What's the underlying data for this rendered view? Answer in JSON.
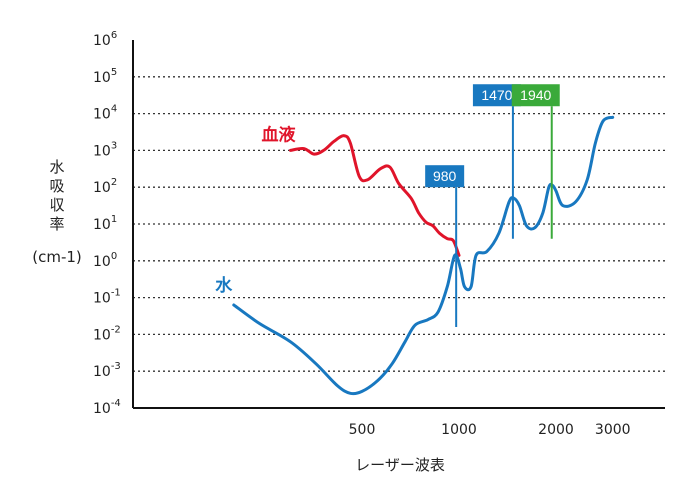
{
  "chart_data": {
    "type": "line",
    "xlabel": "レーザー波表",
    "ylabel_chars": [
      "水",
      "吸",
      "収",
      "率"
    ],
    "ylabel_unit": "(cm-1)",
    "y_scale": "log",
    "y_ticks": [
      {
        "base": "10",
        "exp": "6"
      },
      {
        "base": "10",
        "exp": "5"
      },
      {
        "base": "10",
        "exp": "4"
      },
      {
        "base": "10",
        "exp": "3"
      },
      {
        "base": "10",
        "exp": "2"
      },
      {
        "base": "10",
        "exp": "1"
      },
      {
        "base": "10",
        "exp": "0"
      },
      {
        "base": "10",
        "exp": "-1"
      },
      {
        "base": "10",
        "exp": "-2"
      },
      {
        "base": "10",
        "exp": "-3"
      },
      {
        "base": "10",
        "exp": "-4"
      }
    ],
    "ylim_exp": [
      -4,
      6
    ],
    "x_ticks": [
      500,
      1000,
      2000,
      3000
    ],
    "x_scale": "log",
    "xlim": [
      180,
      4000
    ],
    "grid": "dotted horizontal",
    "series": [
      {
        "name": "血液",
        "color": "#e0142a",
        "points": [
          [
            300,
            3.0
          ],
          [
            330,
            3.05
          ],
          [
            355,
            2.9
          ],
          [
            380,
            3.0
          ],
          [
            410,
            3.25
          ],
          [
            440,
            3.4
          ],
          [
            460,
            3.2
          ],
          [
            490,
            2.3
          ],
          [
            520,
            2.2
          ],
          [
            570,
            2.5
          ],
          [
            610,
            2.55
          ],
          [
            650,
            2.1
          ],
          [
            710,
            1.7
          ],
          [
            750,
            1.3
          ],
          [
            790,
            1.05
          ],
          [
            830,
            0.95
          ],
          [
            870,
            0.75
          ],
          [
            920,
            0.6
          ],
          [
            960,
            0.55
          ],
          [
            1000,
            0.15
          ]
        ]
      },
      {
        "name": "水",
        "color": "#1878c0",
        "points": [
          [
            200,
            -1.2
          ],
          [
            240,
            -1.7
          ],
          [
            300,
            -2.2
          ],
          [
            360,
            -2.8
          ],
          [
            420,
            -3.4
          ],
          [
            460,
            -3.6
          ],
          [
            500,
            -3.55
          ],
          [
            560,
            -3.25
          ],
          [
            620,
            -2.8
          ],
          [
            680,
            -2.2
          ],
          [
            730,
            -1.75
          ],
          [
            800,
            -1.6
          ],
          [
            860,
            -1.4
          ],
          [
            920,
            -0.7
          ],
          [
            970,
            0.15
          ],
          [
            1010,
            -0.2
          ],
          [
            1040,
            -0.7
          ],
          [
            1090,
            -0.7
          ],
          [
            1130,
            0.15
          ],
          [
            1220,
            0.25
          ],
          [
            1330,
            0.75
          ],
          [
            1430,
            1.6
          ],
          [
            1480,
            1.7
          ],
          [
            1540,
            1.5
          ],
          [
            1620,
            0.95
          ],
          [
            1720,
            0.9
          ],
          [
            1820,
            1.3
          ],
          [
            1900,
            2.0
          ],
          [
            1950,
            2.05
          ],
          [
            2000,
            1.9
          ],
          [
            2100,
            1.5
          ],
          [
            2300,
            1.6
          ],
          [
            2500,
            2.2
          ],
          [
            2650,
            3.2
          ],
          [
            2800,
            3.8
          ],
          [
            3000,
            3.9
          ]
        ]
      }
    ],
    "callouts": [
      {
        "label": "980",
        "wavelength": 980,
        "y_top": 2.0,
        "y_bottom": -1.8,
        "color": "#1878c0"
      },
      {
        "label": "1470",
        "wavelength": 1470,
        "y_top": 4.2,
        "y_bottom": 0.6,
        "color": "#1878c0"
      },
      {
        "label": "1940",
        "wavelength": 1940,
        "y_top": 4.2,
        "y_bottom": 0.6,
        "color": "#3aaa3a"
      }
    ]
  }
}
